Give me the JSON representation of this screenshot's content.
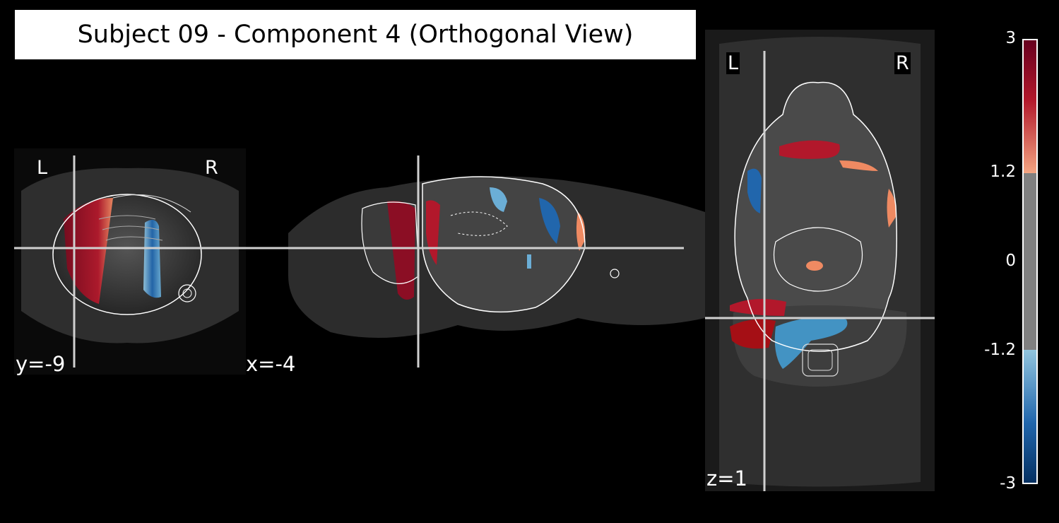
{
  "figure": {
    "title": "Subject 09 - Component 4 (Orthogonal View)"
  },
  "panels": {
    "coronal": {
      "coord_label": "y=-9",
      "left_label": "L",
      "right_label": "R"
    },
    "sagittal": {
      "coord_label": "x=-4"
    },
    "axial": {
      "coord_label": "z=1",
      "left_label": "L",
      "right_label": "R"
    }
  },
  "colorbar": {
    "colormap": "RdBu_r",
    "vmin": -3,
    "vmax": 3,
    "threshold": 1.2,
    "tick_labels": [
      "3",
      "1.2",
      "0",
      "-1.2",
      "-3"
    ],
    "colors": {
      "max": "#67001f",
      "pos_thresh": "#f4a582",
      "mid": "#808080",
      "neg_thresh": "#92c5de",
      "min": "#053061"
    }
  }
}
